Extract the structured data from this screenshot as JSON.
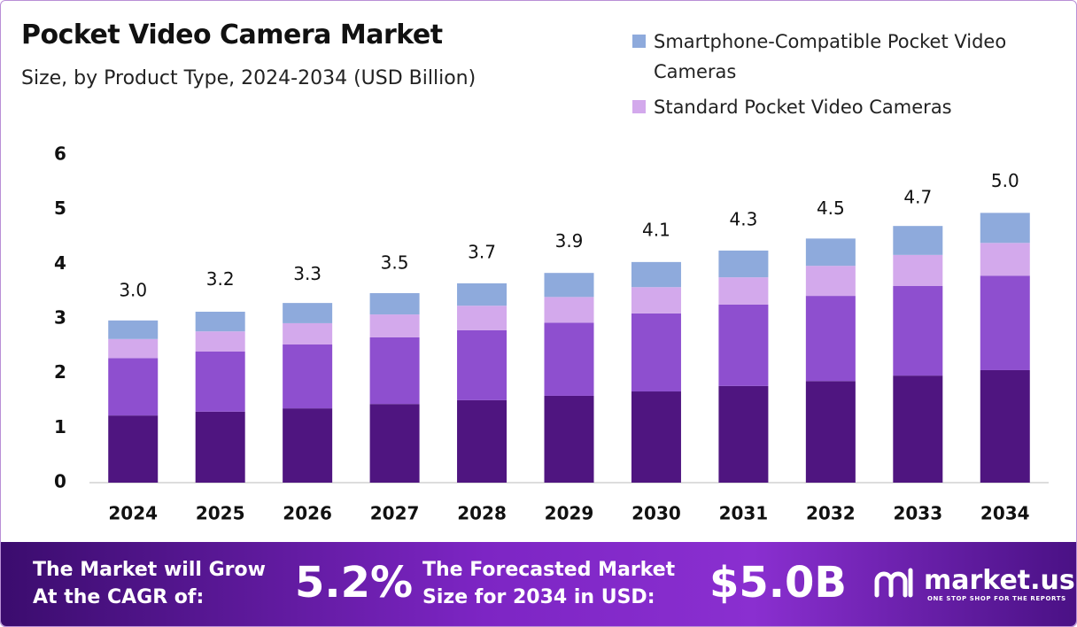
{
  "chart_data": {
    "type": "stacked-bar",
    "title": "Pocket Video Camera Market",
    "subtitle": "Size, by Product Type, 2024-2034 (USD Billion)",
    "categories": [
      "2024",
      "2025",
      "2026",
      "2027",
      "2028",
      "2029",
      "2030",
      "2031",
      "2032",
      "2033",
      "2034"
    ],
    "series": [
      {
        "color": "#4f1580",
        "values": [
          1.23,
          1.3,
          1.36,
          1.44,
          1.51,
          1.59,
          1.67,
          1.77,
          1.86,
          1.96,
          2.06
        ]
      },
      {
        "color": "#8e4fcf",
        "values": [
          1.05,
          1.1,
          1.17,
          1.22,
          1.28,
          1.34,
          1.43,
          1.49,
          1.56,
          1.64,
          1.73
        ]
      },
      {
        "name": "Standard Pocket Video Cameras",
        "color": "#d3a9ec",
        "values": [
          0.35,
          0.37,
          0.39,
          0.42,
          0.45,
          0.47,
          0.48,
          0.5,
          0.55,
          0.57,
          0.6
        ]
      },
      {
        "name": "Smartphone-Compatible Pocket Video Cameras",
        "color": "#8eaadc",
        "values": [
          0.34,
          0.36,
          0.37,
          0.39,
          0.41,
          0.44,
          0.46,
          0.49,
          0.5,
          0.53,
          0.55
        ]
      }
    ],
    "totals": {
      "values": [
        3.0,
        3.2,
        3.3,
        3.5,
        3.7,
        3.9,
        4.1,
        4.3,
        4.5,
        4.7,
        5.0
      ],
      "value_labels": [
        "3.0",
        "3.2",
        "3.3",
        "3.5",
        "3.7",
        "3.9",
        "4.1",
        "4.3",
        "4.5",
        "4.7",
        "5.0"
      ]
    },
    "ylim": [
      0,
      6
    ],
    "yticks": [
      0,
      1,
      2,
      3,
      4,
      5,
      6
    ],
    "grid": false
  },
  "footer": {
    "cagr_text": "The Market will Grow At the CAGR of:",
    "cagr_value": "5.2%",
    "forecast_text": "The Forecasted Market Size for 2034 in USD:",
    "forecast_value": "$5.0B",
    "brand": "market.us",
    "tagline": "ONE STOP SHOP FOR THE REPORTS"
  }
}
